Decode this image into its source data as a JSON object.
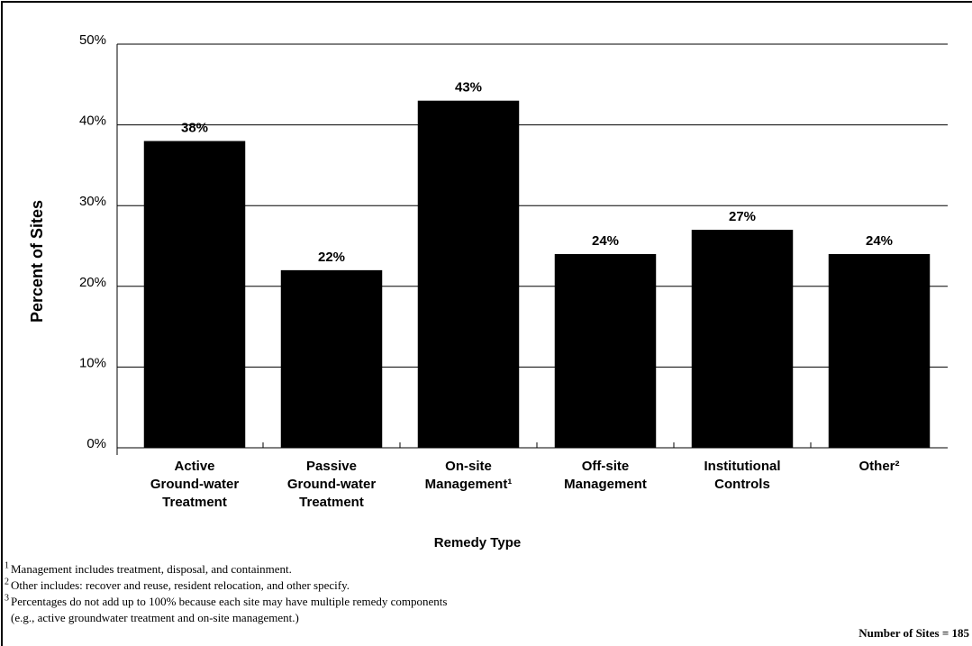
{
  "chart_data": {
    "type": "bar",
    "categories": [
      [
        "Active",
        "Ground-water",
        "Treatment"
      ],
      [
        "Passive",
        "Ground-water",
        "Treatment"
      ],
      [
        "On-site",
        "Management¹"
      ],
      [
        "Off-site",
        "Management"
      ],
      [
        "Institutional",
        "Controls"
      ],
      [
        "Other²"
      ]
    ],
    "values": [
      38,
      22,
      43,
      24,
      27,
      24
    ],
    "value_labels": [
      "38%",
      "22%",
      "43%",
      "24%",
      "27%",
      "24%"
    ],
    "color": "#000000",
    "ylim": [
      0,
      50
    ],
    "yticks": [
      {
        "value": 0,
        "label": "0%"
      },
      {
        "value": 10,
        "label": "10%"
      },
      {
        "value": 20,
        "label": "20%"
      },
      {
        "value": 30,
        "label": "30%"
      },
      {
        "value": 40,
        "label": "40%"
      },
      {
        "value": 50,
        "label": "50%"
      }
    ],
    "grid": true,
    "ylabel": "Percent of Sites",
    "xlabel": "Remedy Type",
    "footnotes": [
      {
        "mark": "1",
        "lines": [
          "Management includes treatment, disposal, and containment."
        ]
      },
      {
        "mark": "2",
        "lines": [
          "Other includes: recover and reuse, resident relocation, and other specify."
        ]
      },
      {
        "mark": "3",
        "lines": [
          "Percentages do not add up to 100% because each site may have multiple remedy components",
          "(e.g., active groundwater treatment and on-site management.)"
        ]
      }
    ],
    "note": "Number of Sites = 185"
  }
}
